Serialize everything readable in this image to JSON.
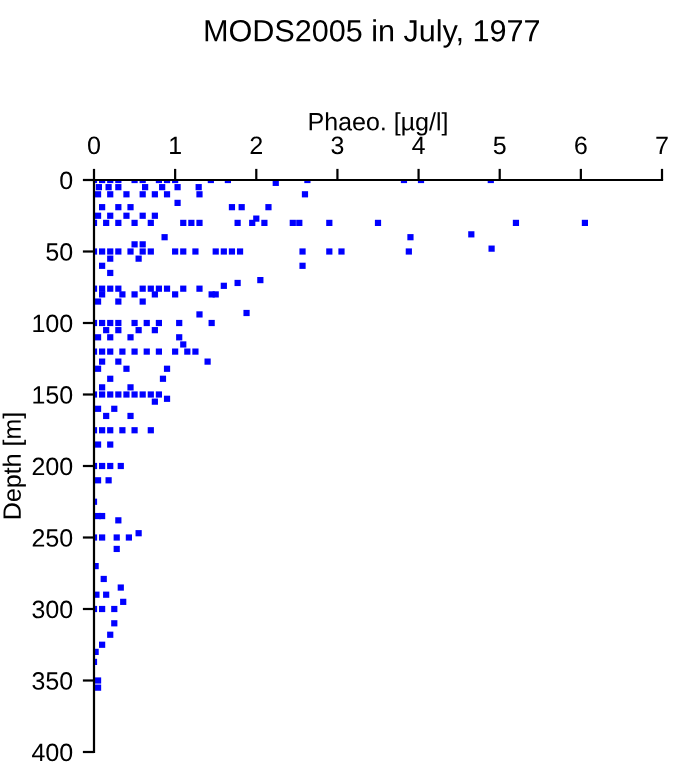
{
  "chart_data": {
    "type": "scatter",
    "title": "MODS2005 in July, 1977",
    "xlabel": "Phaeo. [µg/l]",
    "ylabel": "Depth [m]",
    "xlim": [
      0,
      7
    ],
    "xticks": [
      0,
      1,
      2,
      3,
      4,
      5,
      6,
      7
    ],
    "ylim": [
      400,
      0
    ],
    "yticks": [
      0,
      50,
      100,
      150,
      200,
      250,
      300,
      350,
      400
    ],
    "grid": false,
    "marker": "square",
    "series": [
      {
        "color": "#0000ff",
        "x": [
          0,
          0.1,
          0.2,
          0.3,
          0.5,
          0.6,
          0.8,
          0.9,
          1.0,
          1.44,
          1.65,
          2.63,
          3.82,
          4.03,
          4.89,
          2.24,
          0.06,
          0.18,
          0.3,
          0.63,
          0.84,
          1.03,
          1.29,
          0.05,
          0.2,
          0.4,
          0.6,
          0.75,
          0.9,
          1.3,
          2.6,
          1.03,
          0.1,
          0.3,
          0.45,
          1.7,
          1.82,
          2.15,
          0.05,
          0.2,
          0.4,
          0.6,
          0.75,
          0,
          0.15,
          0.3,
          0.5,
          0.7,
          1.1,
          1.2,
          1.3,
          1.77,
          1.95,
          2.1,
          2.45,
          2.53,
          2.9,
          3.5,
          5.2,
          6.05,
          2.0,
          4.65,
          0.87,
          3.9,
          4.9,
          0.5,
          0.6,
          0,
          0.1,
          0.2,
          0.3,
          0.45,
          0.6,
          0.7,
          1.0,
          1.1,
          1.25,
          1.5,
          1.6,
          1.7,
          1.8,
          2.57,
          2.9,
          3.05,
          3.88,
          0.2,
          0.55,
          0.1,
          2.57,
          0.2,
          2.05,
          1.77,
          1.6,
          0,
          0.1,
          0.2,
          0.3,
          0.6,
          0.7,
          0.8,
          0.9,
          1.1,
          1.3,
          0.1,
          0.35,
          0.5,
          0.75,
          1.0,
          1.45,
          1.5,
          0.05,
          0.3,
          0.6,
          1.88,
          1.3,
          0,
          0.1,
          0.2,
          0.3,
          0.5,
          0.65,
          0.8,
          1.05,
          1.45,
          0.15,
          0.3,
          0.55,
          0.75,
          0.05,
          0.2,
          0.45,
          1.05,
          1.1,
          0,
          0.1,
          0.2,
          0.35,
          0.5,
          0.65,
          0.8,
          1.0,
          1.15,
          1.25,
          0.1,
          0.3,
          1.4,
          0.05,
          0.4,
          0.9,
          0.2,
          0.85,
          0.1,
          0.45,
          0,
          0.1,
          0.2,
          0.3,
          0.4,
          0.5,
          0.6,
          0.7,
          0.8,
          0.9,
          0.75,
          0.05,
          0.25,
          0.15,
          0.45,
          0,
          0.1,
          0.2,
          0.35,
          0.5,
          0.7,
          0.05,
          0.2,
          0,
          0.1,
          0.2,
          0.33,
          0.05,
          0.18,
          0,
          0.05,
          0.1,
          0.3,
          0.55,
          0,
          0.1,
          0.28,
          0.43,
          0.28,
          0.02,
          0.12,
          0.33,
          0.03,
          0.15,
          0.36,
          0,
          0.1,
          0.25,
          0.25,
          0.2,
          0.1,
          0.02,
          0,
          0.05,
          0.05
        ],
        "values": [
          0,
          0,
          0,
          0,
          0,
          0,
          0,
          0,
          0,
          0,
          0,
          0,
          0,
          0,
          0,
          2,
          5,
          5,
          5,
          5,
          5,
          5,
          5,
          10,
          10,
          10,
          10,
          10,
          10,
          10,
          10,
          16,
          19,
          19,
          19,
          19,
          19,
          19,
          25,
          25,
          25,
          25,
          25,
          30,
          30,
          30,
          30,
          30,
          30,
          30,
          30,
          30,
          30,
          30,
          30,
          30,
          30,
          30,
          30,
          30,
          27,
          38,
          40,
          40,
          48,
          45,
          45,
          50,
          50,
          50,
          50,
          50,
          50,
          50,
          50,
          50,
          50,
          50,
          50,
          50,
          50,
          50,
          50,
          50,
          50,
          55,
          55,
          60,
          60,
          65,
          70,
          72,
          74,
          76,
          76,
          76,
          76,
          76,
          76,
          76,
          76,
          76,
          76,
          80,
          80,
          80,
          80,
          80,
          80,
          80,
          85,
          85,
          85,
          93,
          94,
          100,
          100,
          100,
          100,
          100,
          100,
          100,
          100,
          100,
          105,
          105,
          105,
          105,
          110,
          110,
          110,
          110,
          115,
          120,
          120,
          120,
          120,
          120,
          120,
          120,
          120,
          120,
          120,
          127,
          127,
          127,
          132,
          132,
          132,
          139,
          139,
          145,
          145,
          150,
          150,
          150,
          150,
          150,
          150,
          150,
          150,
          150,
          153,
          155,
          160,
          160,
          165,
          165,
          175,
          175,
          175,
          175,
          175,
          175,
          185,
          185,
          200,
          200,
          200,
          200,
          210,
          210,
          225,
          235,
          235,
          238,
          247,
          250,
          250,
          250,
          250,
          258,
          270,
          279,
          285,
          290,
          290,
          295,
          300,
          300,
          300,
          310,
          318,
          325,
          330,
          337,
          350,
          355
        ]
      }
    ]
  }
}
